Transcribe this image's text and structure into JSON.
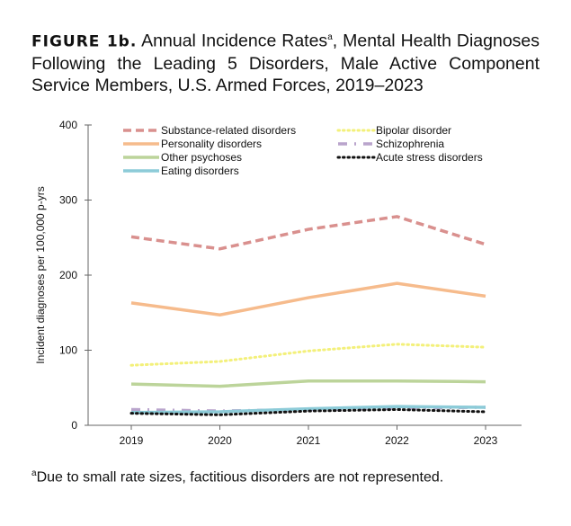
{
  "title": {
    "label": "FIGURE 1b.",
    "text": "Annual Incidence Rates",
    "sup": "a",
    "rest": ", Mental Health Diagnoses Following the Leading 5 Disorders, Male Active Component Service Members, U.S. Armed Forces, 2019–2023"
  },
  "footnote": {
    "sup": "a",
    "text": "Due to small rate sizes, factitious disorders are not represented."
  },
  "chart_data": {
    "type": "line",
    "xlabel": "",
    "ylabel": "Incident diagnoses per 100,000 p-yrs",
    "ylim": [
      0,
      400
    ],
    "yticks": [
      0,
      100,
      200,
      300,
      400
    ],
    "categories": [
      "2019",
      "2020",
      "2021",
      "2022",
      "2023"
    ],
    "legend": "top",
    "grid": false,
    "series": [
      {
        "name": "Substance-related disorders",
        "values": [
          251,
          235,
          261,
          278,
          241
        ],
        "color": "#d9908e",
        "style": "dashed"
      },
      {
        "name": "Personality disorders",
        "values": [
          163,
          147,
          170,
          189,
          172
        ],
        "color": "#f6bb8c",
        "style": "solid"
      },
      {
        "name": "Other psychoses",
        "values": [
          55,
          52,
          59,
          59,
          58
        ],
        "color": "#bcd49a",
        "style": "solid"
      },
      {
        "name": "Eating disorders",
        "values": [
          17,
          18,
          22,
          25,
          24
        ],
        "color": "#8ccbd8",
        "style": "solid"
      },
      {
        "name": "Bipolar disorder",
        "values": [
          80,
          85,
          99,
          108,
          104
        ],
        "color": "#f3f07a",
        "style": "dotted"
      },
      {
        "name": "Schizophrenia",
        "values": [
          21,
          19,
          21,
          23,
          24
        ],
        "color": "#b9a4cc",
        "style": "dashdot"
      },
      {
        "name": "Acute stress disorders",
        "values": [
          16,
          14,
          19,
          21,
          18
        ],
        "color": "#111111",
        "style": "dotted"
      }
    ]
  }
}
